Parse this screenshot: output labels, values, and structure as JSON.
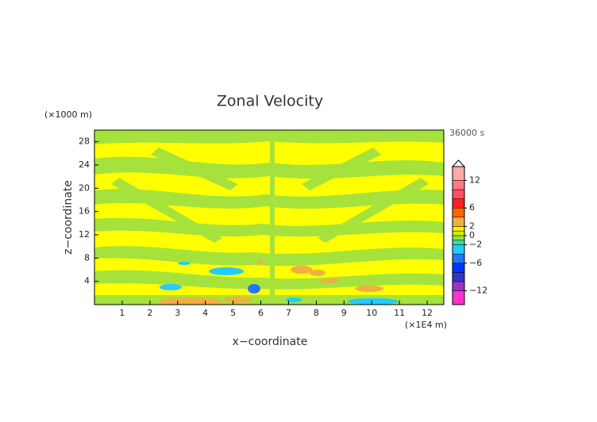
{
  "chart_data": {
    "type": "contour",
    "title": "Zonal Velocity",
    "x_label": "x−coordinate",
    "y_label": "z−coordinate",
    "x_unit": "(×1E4 m)",
    "y_unit": "(×1000 m)",
    "time_label": "36000 s",
    "xlim": [
      0,
      12.6
    ],
    "xticks": [
      1,
      2,
      3,
      4,
      5,
      6,
      7,
      8,
      9,
      10,
      11,
      12
    ],
    "ylim": [
      0,
      30
    ],
    "yticks": [
      4,
      8,
      12,
      16,
      20,
      24,
      28
    ],
    "colorbar": {
      "levels": [
        -15,
        -12,
        -10,
        -8,
        -6,
        -4,
        -2,
        -1,
        0,
        1,
        2,
        4,
        6,
        8,
        10,
        12,
        15
      ],
      "colors": [
        "#ff33cc",
        "#9933cc",
        "#3333cc",
        "#0033ff",
        "#2277ff",
        "#22ccff",
        "#33ddaa",
        "#99e23c",
        "#ccf000",
        "#ffee00",
        "#f0b040",
        "#ff6600",
        "#ff2020",
        "#ff5060",
        "#ff7a86",
        "#ffaaaa"
      ],
      "ticks": [
        {
          "value": -12,
          "label": "−12"
        },
        {
          "value": -6,
          "label": "−6"
        },
        {
          "value": -2,
          "label": "−2"
        },
        0,
        2,
        6,
        12
      ],
      "extend": "max"
    }
  }
}
